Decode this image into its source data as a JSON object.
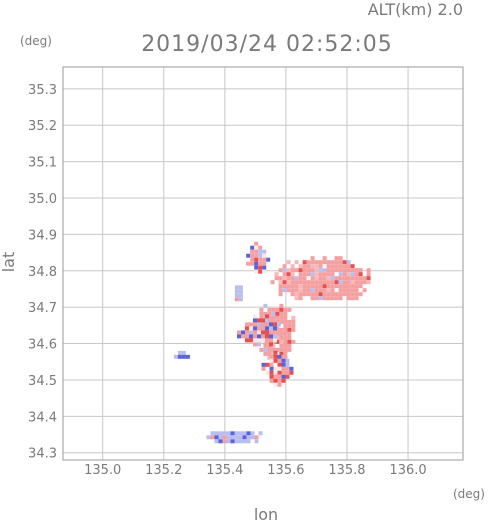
{
  "header": {
    "alt_label": "ALT(km) 2.0",
    "timestamp": "2019/03/24 02:52:05"
  },
  "chart_data": {
    "type": "heatmap",
    "title": "2019/03/24 02:52:05",
    "subtitle": "ALT(km) 2.0",
    "xlabel": "lon",
    "ylabel": "lat",
    "x_unit": "(deg)",
    "y_unit": "(deg)",
    "xlim": [
      134.87,
      136.18
    ],
    "ylim": [
      34.28,
      35.36
    ],
    "x_ticks": [
      135.0,
      135.2,
      135.4,
      135.6,
      135.8,
      136.0
    ],
    "x_tick_labels": [
      "135.0",
      "135.2",
      "135.4",
      "135.6",
      "135.8",
      "136.0"
    ],
    "y_ticks": [
      34.3,
      34.4,
      34.5,
      34.6,
      34.7,
      34.8,
      34.9,
      35.0,
      35.1,
      35.2,
      35.3
    ],
    "y_tick_labels": [
      "34.3",
      "34.4",
      "34.5",
      "34.6",
      "34.7",
      "34.8",
      "34.9",
      "35.0",
      "35.1",
      "35.2",
      "35.3"
    ],
    "grid": true,
    "colors": {
      "positive": "#f4a0a0",
      "positive_strong": "#e65050",
      "negative": "#b8bff0",
      "negative_strong": "#5a64d8",
      "neutral": "#f8e8e8"
    },
    "regions": [
      {
        "sign": "positive",
        "lon": [
          135.55,
          135.88
        ],
        "lat": [
          34.72,
          34.84
        ]
      },
      {
        "sign": "positive",
        "lon": [
          135.5,
          135.62
        ],
        "lat": [
          34.56,
          34.72
        ]
      },
      {
        "sign": "mixed",
        "lon": [
          135.44,
          135.58
        ],
        "lat": [
          34.6,
          34.68
        ]
      },
      {
        "sign": "mixed",
        "lon": [
          135.52,
          135.62
        ],
        "lat": [
          34.49,
          34.58
        ]
      },
      {
        "sign": "mixed",
        "lon": [
          135.47,
          135.54
        ],
        "lat": [
          34.8,
          34.88
        ]
      },
      {
        "sign": "negative",
        "lon": [
          135.22,
          135.28
        ],
        "lat": [
          34.56,
          34.58
        ]
      },
      {
        "sign": "negative",
        "lon": [
          135.42,
          135.46
        ],
        "lat": [
          34.72,
          34.76
        ]
      },
      {
        "sign": "negative",
        "lon": [
          135.34,
          135.52
        ],
        "lat": [
          34.33,
          34.37
        ]
      }
    ]
  }
}
